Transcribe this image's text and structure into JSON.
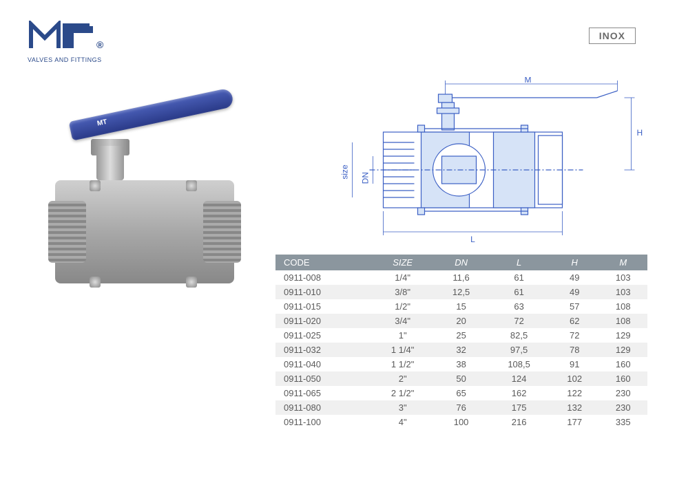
{
  "logo": {
    "brand": "MT",
    "registered": "®",
    "tagline": "VALVES AND FITTINGS",
    "color_primary": "#2b4a8a",
    "color_accent": "#3b5fc4"
  },
  "badge": {
    "text": "INOX",
    "border_color": "#888888",
    "text_color": "#6b6b6b"
  },
  "photo": {
    "handle_color": "#2a3a88",
    "handle_brand": "MT",
    "body_color": "#a8a8a8"
  },
  "diagram": {
    "stroke_color": "#3b5fc4",
    "fill_light": "#d6e3f7",
    "dim_M": "M",
    "dim_H": "H",
    "dim_L": "L",
    "dim_DN": "DN",
    "dim_size": "size"
  },
  "table": {
    "header_bg": "#8b969e",
    "header_fg": "#ffffff",
    "row_alt_bg": "#f0f0f0",
    "columns": [
      "CODE",
      "SIZE",
      "DN",
      "L",
      "H",
      "M"
    ],
    "rows": [
      {
        "code": "0911-008",
        "size": "1/4\"",
        "dn": "11,6",
        "l": "61",
        "h": "49",
        "m": "103",
        "alt": false
      },
      {
        "code": "0911-010",
        "size": "3/8\"",
        "dn": "12,5",
        "l": "61",
        "h": "49",
        "m": "103",
        "alt": true
      },
      {
        "code": "0911-015",
        "size": "1/2\"",
        "dn": "15",
        "l": "63",
        "h": "57",
        "m": "108",
        "alt": false
      },
      {
        "code": "0911-020",
        "size": "3/4\"",
        "dn": "20",
        "l": "72",
        "h": "62",
        "m": "108",
        "alt": true
      },
      {
        "code": "0911-025",
        "size": "1\"",
        "dn": "25",
        "l": "82,5",
        "h": "72",
        "m": "129",
        "alt": false
      },
      {
        "code": "0911-032",
        "size": "1 1/4\"",
        "dn": "32",
        "l": "97,5",
        "h": "78",
        "m": "129",
        "alt": true
      },
      {
        "code": "0911-040",
        "size": "1 1/2\"",
        "dn": "38",
        "l": "108,5",
        "h": "91",
        "m": "160",
        "alt": false
      },
      {
        "code": "0911-050",
        "size": "2\"",
        "dn": "50",
        "l": "124",
        "h": "102",
        "m": "160",
        "alt": true
      },
      {
        "code": "0911-065",
        "size": "2 1/2\"",
        "dn": "65",
        "l": "162",
        "h": "122",
        "m": "230",
        "alt": false
      },
      {
        "code": "0911-080",
        "size": "3\"",
        "dn": "76",
        "l": "175",
        "h": "132",
        "m": "230",
        "alt": true
      },
      {
        "code": "0911-100",
        "size": "4\"",
        "dn": "100",
        "l": "216",
        "h": "177",
        "m": "335",
        "alt": false
      }
    ]
  }
}
